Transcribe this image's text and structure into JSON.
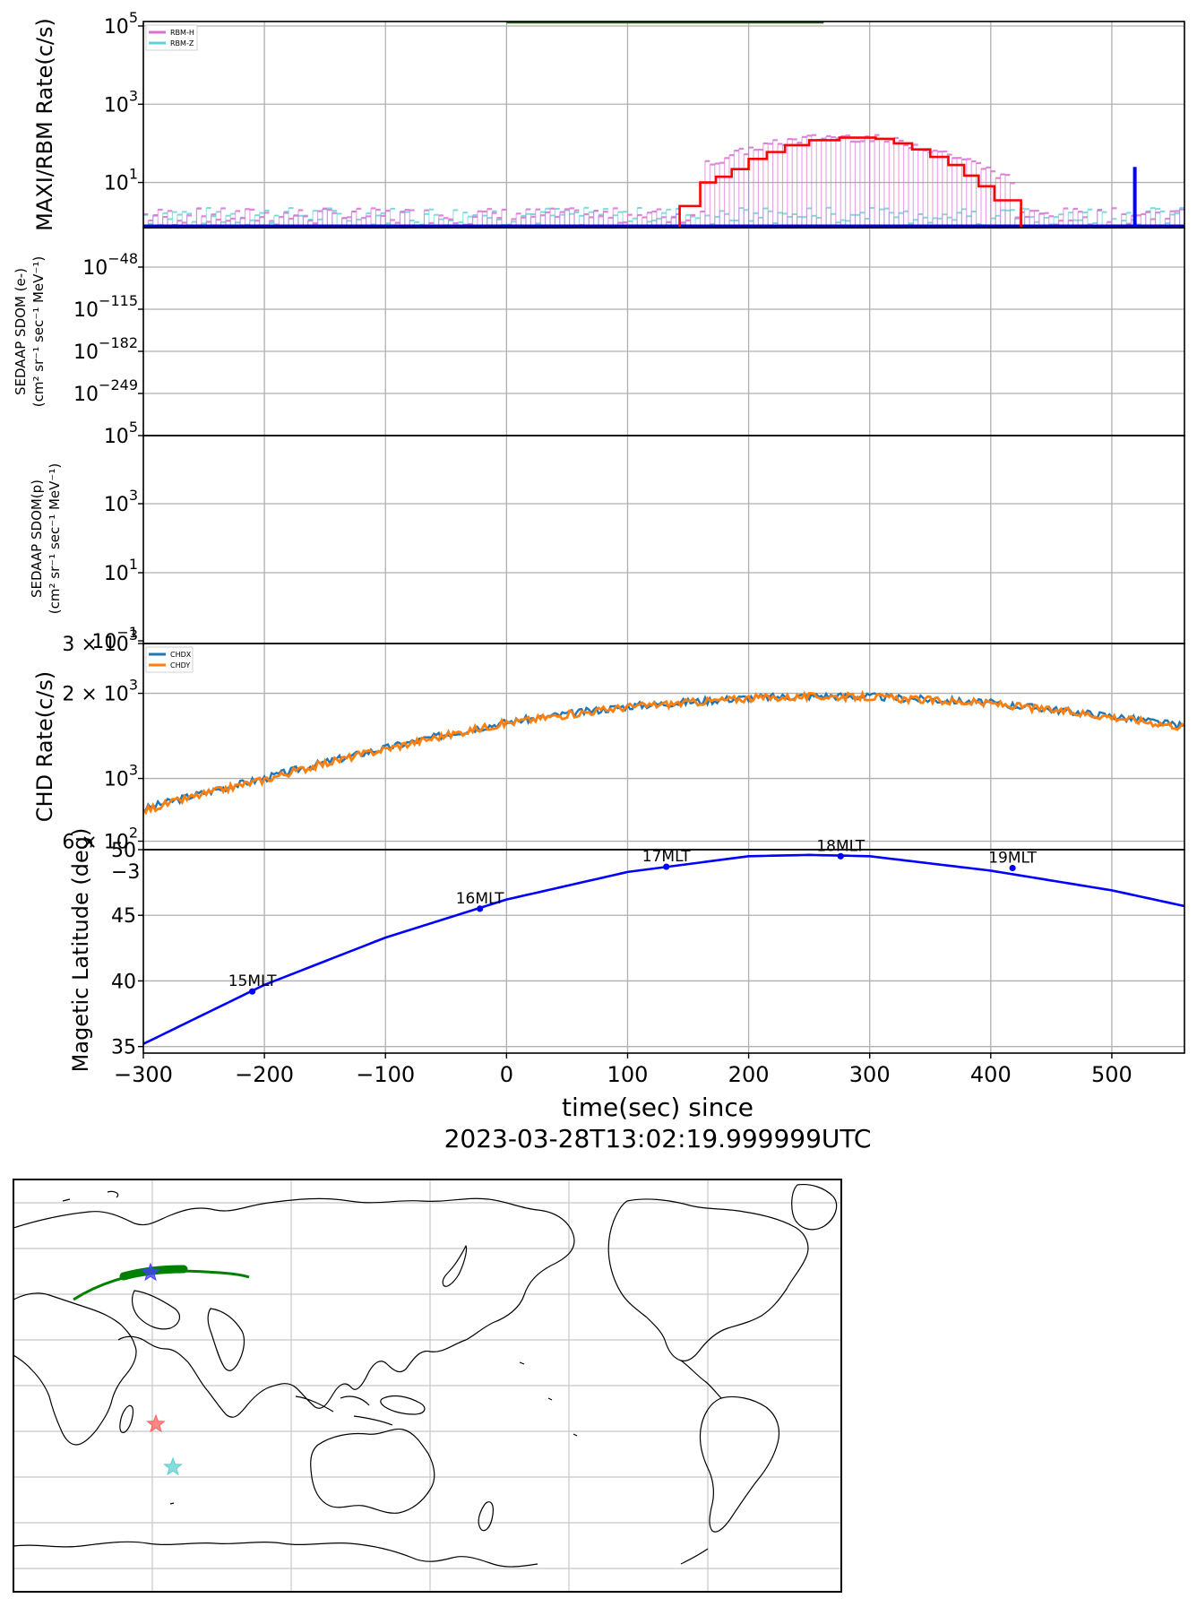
{
  "chart_data": [
    {
      "type": "line",
      "ylabel": "MAXI/RBM Rate(c/s)",
      "yscale": "log",
      "ylim": [
        0.7,
        130000
      ],
      "yticks": [
        {
          "v": 10,
          "label": "10",
          "exp": "1"
        },
        {
          "v": 1000,
          "label": "10",
          "exp": "3"
        },
        {
          "v": 100000,
          "label": "10",
          "exp": "5"
        }
      ],
      "xlim": [
        -300,
        560
      ],
      "xticks": [
        -300,
        -200,
        -100,
        0,
        100,
        200,
        300,
        400,
        500
      ],
      "grid": true,
      "legend_position": "top-left",
      "legend": [
        {
          "name": "RBM-H",
          "color": "#da70d6"
        },
        {
          "name": "RBM-Z",
          "color": "#5fd3d3"
        }
      ],
      "segments": [
        {
          "name": "green-bar",
          "color": "#008000",
          "x": [
            0,
            262
          ],
          "y": 125000
        }
      ],
      "series": [
        {
          "name": "step-red",
          "color": "#ff0000",
          "x": [
            143,
            143,
            160,
            160,
            173,
            173,
            186,
            186,
            200,
            200,
            215,
            215,
            230,
            230,
            250,
            250,
            275,
            275,
            305,
            305,
            320,
            320,
            335,
            335,
            350,
            350,
            365,
            365,
            378,
            378,
            390,
            390,
            403,
            403,
            425,
            425
          ],
          "y": [
            0.7,
            2.5,
            2.5,
            10,
            10,
            14,
            14,
            22,
            22,
            40,
            40,
            60,
            60,
            90,
            90,
            120,
            120,
            140,
            140,
            130,
            130,
            100,
            100,
            70,
            70,
            45,
            45,
            28,
            28,
            15,
            15,
            8,
            8,
            3.5,
            3.5,
            0.7
          ]
        }
      ],
      "spike": {
        "x": 519,
        "y": 25,
        "color": "#0000ff"
      }
    },
    {
      "type": "line",
      "ylabel_line1": "SEDAAP SDOM (e-)",
      "ylabel_line2": "(cm² sr⁻¹ sec⁻¹ MeV⁻¹)",
      "yscale": "log",
      "yticks": [
        {
          "label": "10",
          "exp": "−48"
        },
        {
          "label": "10",
          "exp": "−115"
        },
        {
          "label": "10",
          "exp": "−182"
        },
        {
          "label": "10",
          "exp": "−249"
        }
      ],
      "xlim": [
        -300,
        560
      ],
      "grid": true
    },
    {
      "type": "line",
      "ylabel_line1": "SEDAAP SDOM(p)",
      "ylabel_line2": "(cm² sr⁻¹ sec⁻¹ MeV⁻¹)",
      "yscale": "log",
      "yticks": [
        {
          "label": "10",
          "exp": "5"
        },
        {
          "label": "10",
          "exp": "3"
        },
        {
          "label": "10",
          "exp": "1"
        },
        {
          "label": "10",
          "exp": "−1"
        }
      ],
      "xlim": [
        -300,
        560
      ],
      "grid": true
    },
    {
      "type": "line",
      "ylabel": "CHD Rate(c/s)",
      "yscale": "log",
      "ylim": [
        560,
        3000
      ],
      "yticks": [
        {
          "v": 3000,
          "label": "3 × 10",
          "exp": "3"
        },
        {
          "v": 2000,
          "label": "2 × 10",
          "exp": "3"
        },
        {
          "v": 1000,
          "label": "10",
          "exp": "3"
        },
        {
          "v": 600,
          "label": "6 × 10",
          "exp": "2"
        }
      ],
      "xlim": [
        -300,
        560
      ],
      "grid": true,
      "legend_position": "top-left",
      "series": [
        {
          "name": "CHDX",
          "color": "#1f77b4",
          "x": [
            -300,
            -200,
            -100,
            0,
            100,
            200,
            260,
            300,
            400,
            500,
            560
          ],
          "y": [
            780,
            1000,
            1280,
            1580,
            1800,
            1930,
            1960,
            1950,
            1850,
            1660,
            1530
          ]
        },
        {
          "name": "CHDY",
          "color": "#ff7f0e",
          "x": [
            -300,
            -200,
            -100,
            0,
            100,
            200,
            260,
            300,
            400,
            500,
            560
          ],
          "y": [
            770,
            990,
            1270,
            1570,
            1790,
            1920,
            1950,
            1940,
            1840,
            1650,
            1520
          ]
        }
      ]
    },
    {
      "type": "line",
      "ylabel": "Magetic Latitude  (deg)",
      "ylim": [
        34.5,
        50
      ],
      "yticks": [
        35,
        40,
        45,
        50
      ],
      "xlim": [
        -300,
        560
      ],
      "xticks": [
        -300,
        -200,
        -100,
        0,
        100,
        200,
        300,
        400,
        500
      ],
      "xtick_labels": [
        "−300",
        "−200",
        "−100",
        "0",
        "100",
        "200",
        "300",
        "400",
        "500"
      ],
      "grid": true,
      "series": [
        {
          "name": "mag-lat",
          "color": "#0000ff",
          "x": [
            -300,
            -200,
            -100,
            0,
            100,
            200,
            250,
            300,
            400,
            500,
            560
          ],
          "y": [
            35.2,
            39.7,
            43.3,
            46.2,
            48.3,
            49.5,
            49.6,
            49.5,
            48.4,
            46.9,
            45.7
          ]
        }
      ],
      "points": [
        {
          "x": -210,
          "y": 39.2,
          "label": "15MLT"
        },
        {
          "x": -22,
          "y": 45.5,
          "label": "16MLT"
        },
        {
          "x": 132,
          "y": 48.7,
          "label": "17MLT"
        },
        {
          "x": 276,
          "y": 49.5,
          "label": "18MLT"
        },
        {
          "x": 418,
          "y": 48.6,
          "label": "19MLT"
        }
      ],
      "extra_label": "−3",
      "xlabel_line1": "time(sec) since",
      "xlabel_line2": "2023-03-28T13:02:19.999999UTC"
    }
  ],
  "map": {
    "track_color": "#008000",
    "stars": [
      {
        "name": "blue-star",
        "color": "#4040ff"
      },
      {
        "name": "red-star",
        "color": "#ff6060"
      },
      {
        "name": "cyan-star",
        "color": "#60d0d0"
      }
    ]
  }
}
